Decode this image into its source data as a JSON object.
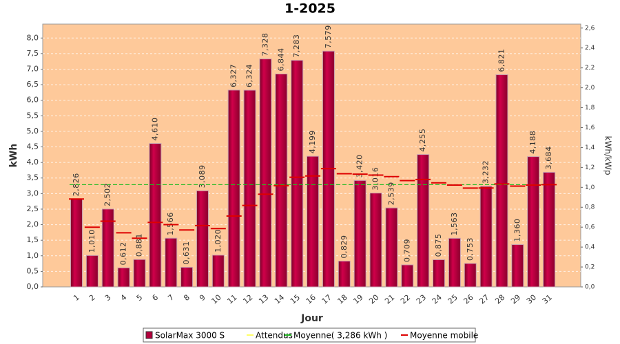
{
  "chart_data": {
    "type": "bar",
    "title": "1-2025",
    "ylabel": "kWh",
    "y2label": "kWh/kWp",
    "xlabel": "Jour",
    "categories": [
      "1",
      "2",
      "3",
      "4",
      "5",
      "6",
      "7",
      "8",
      "9",
      "10",
      "11",
      "12",
      "13",
      "14",
      "15",
      "16",
      "17",
      "18",
      "19",
      "20",
      "21",
      "22",
      "23",
      "24",
      "25",
      "26",
      "27",
      "28",
      "29",
      "30",
      "31"
    ],
    "series": [
      {
        "name": "SolarMax 3000 S",
        "color": "#b3003c",
        "values": [
          2.826,
          1.01,
          2.502,
          0.612,
          0.881,
          4.61,
          1.566,
          0.631,
          3.089,
          1.02,
          6.327,
          6.324,
          7.328,
          6.844,
          7.283,
          4.199,
          7.579,
          0.829,
          3.42,
          3.016,
          2.539,
          0.709,
          4.255,
          0.875,
          1.563,
          0.753,
          3.232,
          6.821,
          1.36,
          4.188,
          3.684
        ],
        "value_labels": [
          "2,826",
          "1,010",
          "2,502",
          "0,612",
          "0,881",
          "4,610",
          "1,566",
          "0,631",
          "3,089",
          "1,020",
          "6,327",
          "6,324",
          "7,328",
          "6,844",
          "7,283",
          "4,199",
          "7,579",
          "0,829",
          "3,420",
          "3,016",
          "2,539",
          "0,709",
          "4,255",
          "0,875",
          "1,563",
          "0,753",
          "3,232",
          "6,821",
          "1,360",
          "4,188",
          "3,684"
        ]
      },
      {
        "name": "Attendus",
        "color": "#ffff66",
        "values": [
          null,
          null,
          null,
          null,
          null,
          null,
          null,
          null,
          null,
          null,
          null,
          null,
          null,
          null,
          null,
          null,
          null,
          null,
          null,
          null,
          null,
          null,
          null,
          null,
          null,
          null,
          null,
          null,
          null,
          null,
          null
        ]
      },
      {
        "name": "Moyenne( 3,286 kWh )",
        "color": "#22bb22",
        "value": 3.286
      },
      {
        "name": "Moyenne mobile",
        "color": "#dd0000",
        "values": [
          2.826,
          1.918,
          2.113,
          1.738,
          1.566,
          2.074,
          2.001,
          1.83,
          1.97,
          1.875,
          2.279,
          2.617,
          2.979,
          3.255,
          3.524,
          3.566,
          3.802,
          3.637,
          3.625,
          3.595,
          3.545,
          3.416,
          3.452,
          3.345,
          3.273,
          3.177,
          3.179,
          3.309,
          3.241,
          3.273,
          3.286
        ]
      }
    ],
    "ylim": [
      0,
      8.448
    ],
    "yticks": [
      {
        "value": 0,
        "label": "0,0"
      },
      {
        "value": 0.5,
        "label": "0,5"
      },
      {
        "value": 1,
        "label": "1,0"
      },
      {
        "value": 1.5,
        "label": "1,5"
      },
      {
        "value": 2,
        "label": "2,0"
      },
      {
        "value": 2.5,
        "label": "2,5"
      },
      {
        "value": 3,
        "label": "3,0"
      },
      {
        "value": 3.5,
        "label": "3,5"
      },
      {
        "value": 4,
        "label": "4,0"
      },
      {
        "value": 4.5,
        "label": "4,5"
      },
      {
        "value": 5,
        "label": "5,0"
      },
      {
        "value": 5.5,
        "label": "5,5"
      },
      {
        "value": 6,
        "label": "6,0"
      },
      {
        "value": 6.5,
        "label": "6,5"
      },
      {
        "value": 7,
        "label": "7,0"
      },
      {
        "value": 7.5,
        "label": "7,5"
      },
      {
        "value": 8,
        "label": "8,0"
      }
    ],
    "y2lim": [
      0,
      2.64
    ],
    "y2ticks": [
      {
        "value": 0,
        "label": "0,0"
      },
      {
        "value": 0.2,
        "label": "0,2"
      },
      {
        "value": 0.4,
        "label": "0,4"
      },
      {
        "value": 0.6,
        "label": "0,6"
      },
      {
        "value": 0.8,
        "label": "0,8"
      },
      {
        "value": 1,
        "label": "1,0"
      },
      {
        "value": 1.2,
        "label": "1,2"
      },
      {
        "value": 1.4,
        "label": "1,4"
      },
      {
        "value": 1.6,
        "label": "1,6"
      },
      {
        "value": 1.8,
        "label": "1,8"
      },
      {
        "value": 2,
        "label": "2,0"
      },
      {
        "value": 2.2,
        "label": "2,2"
      },
      {
        "value": 2.4,
        "label": "2,4"
      },
      {
        "value": 2.6,
        "label": "2,6"
      }
    ],
    "grid": true
  }
}
